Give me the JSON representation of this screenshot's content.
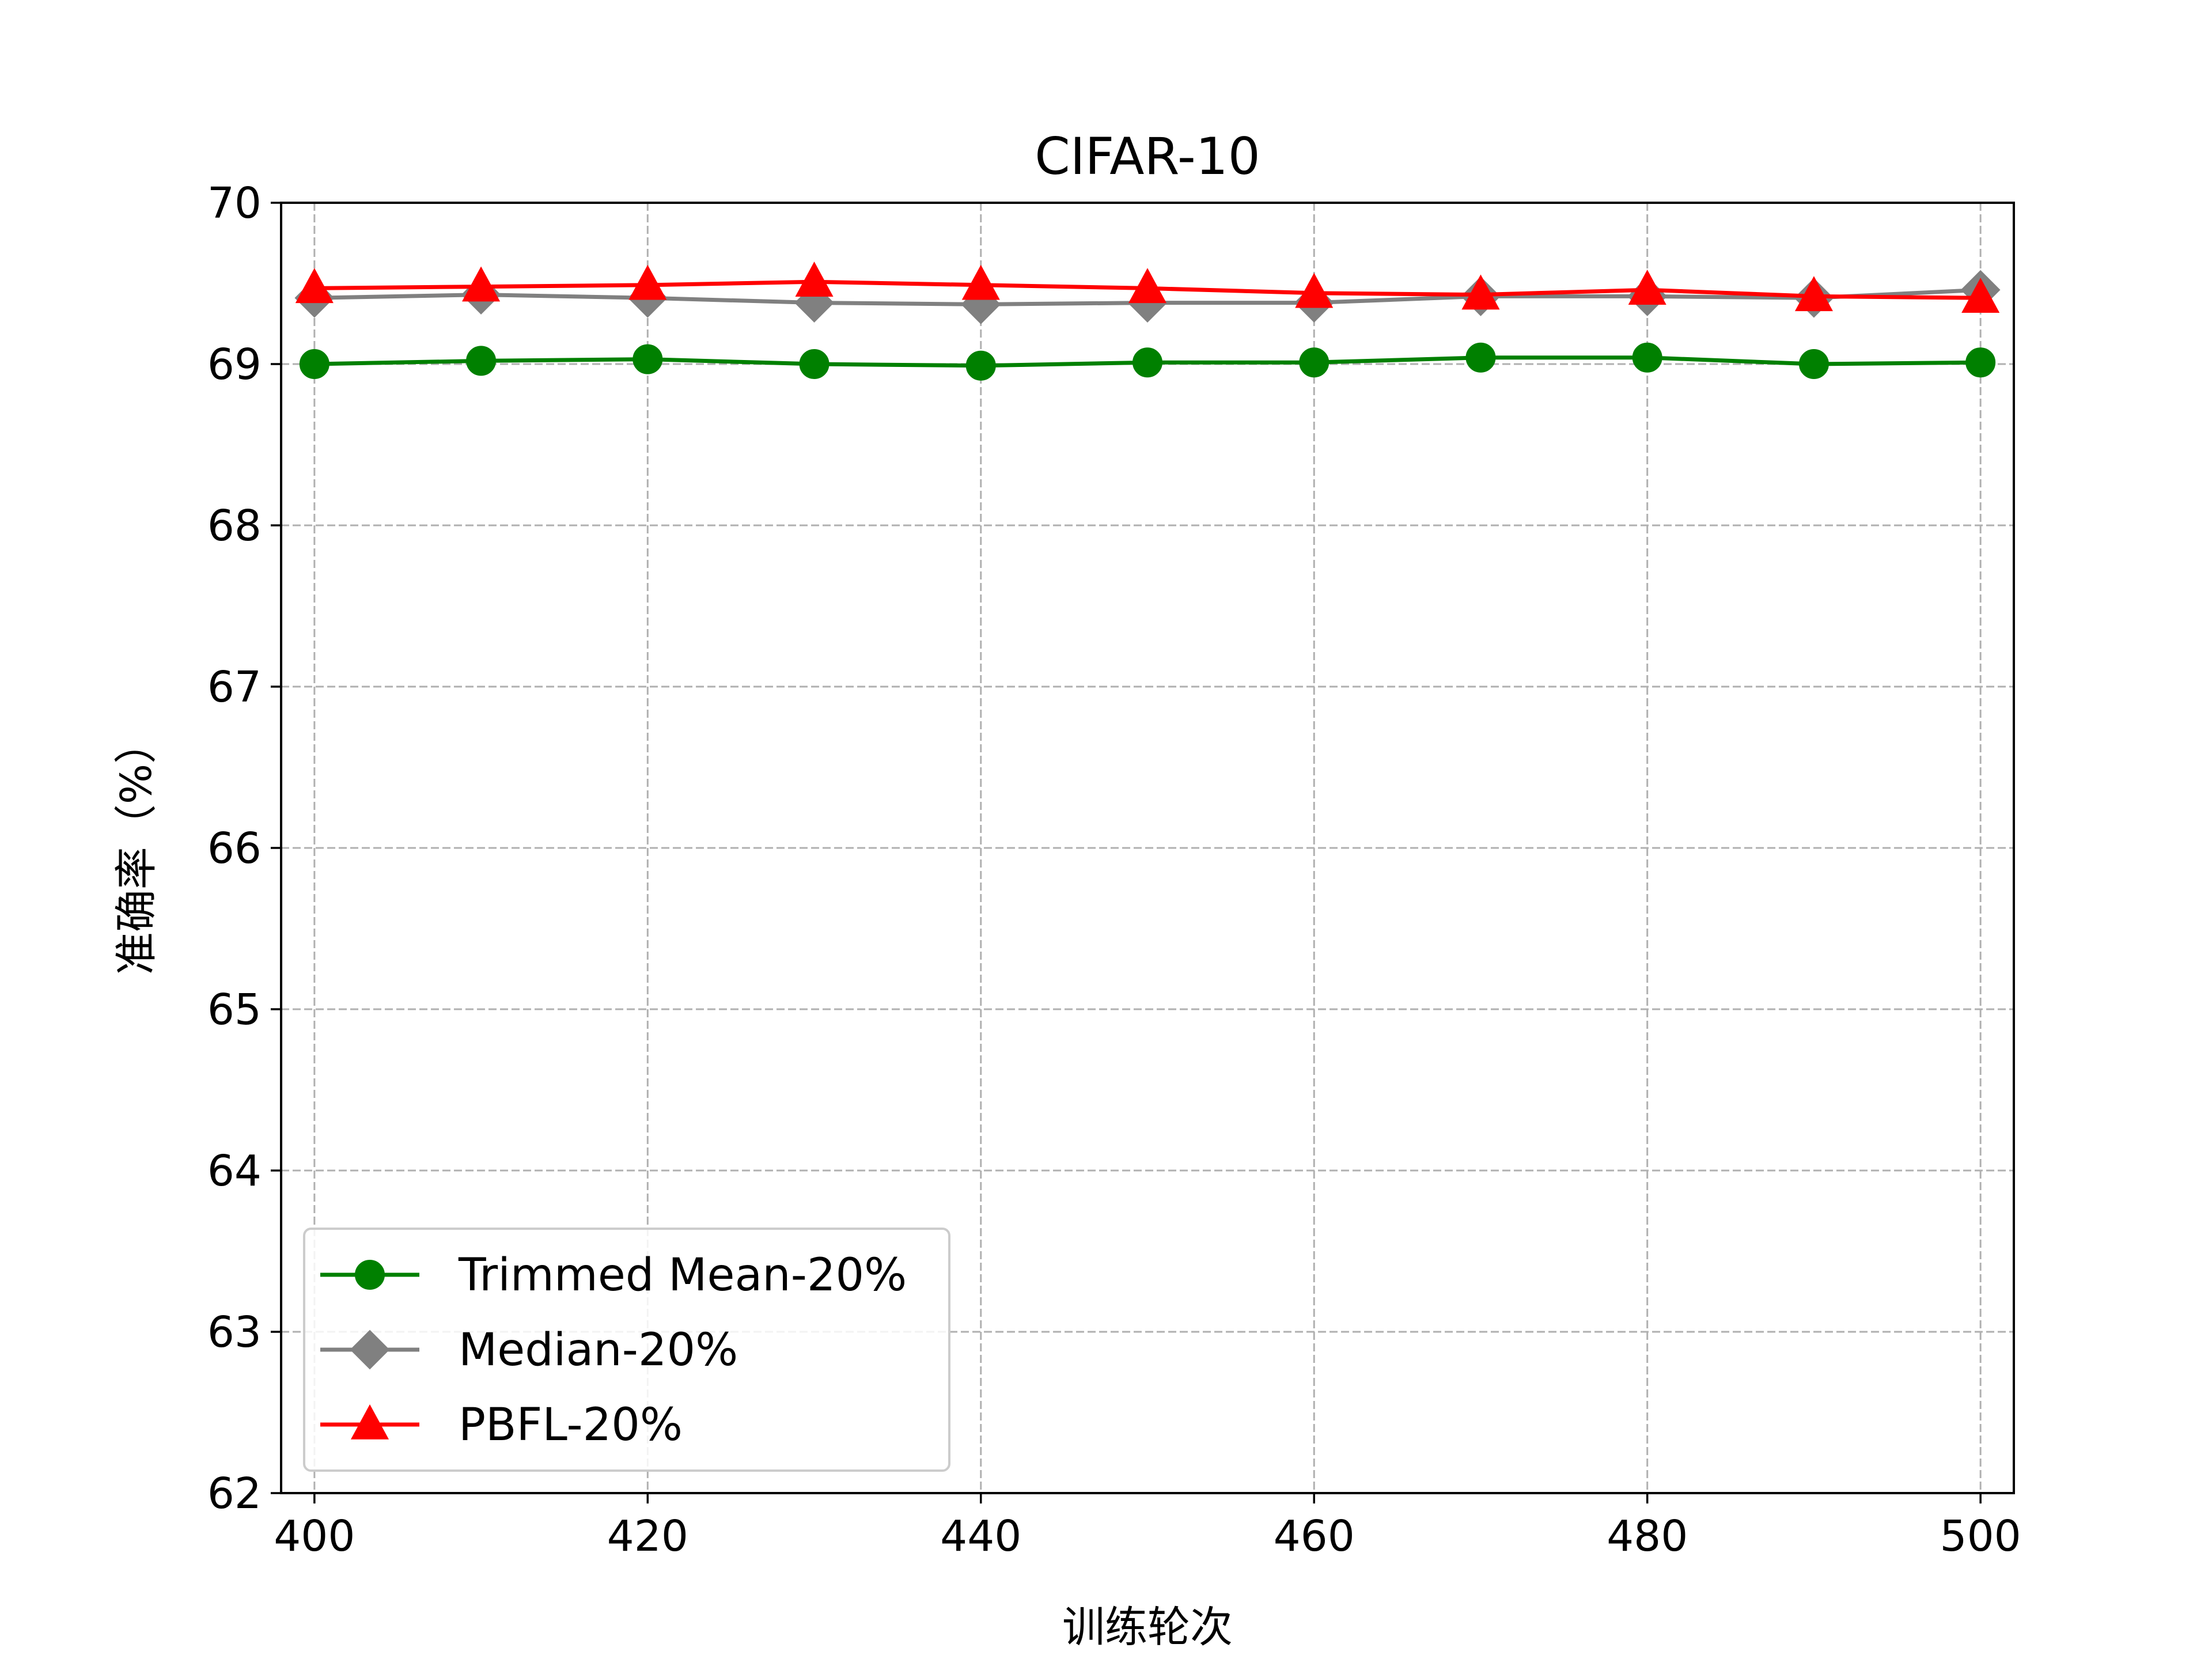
{
  "chart_data": {
    "type": "line",
    "title": "CIFAR-10",
    "xlabel": "训练轮次",
    "ylabel": "准确率（%）",
    "x": [
      400,
      410,
      420,
      430,
      440,
      450,
      460,
      470,
      480,
      490,
      500
    ],
    "xlim": [
      398,
      502
    ],
    "ylim": [
      62,
      70
    ],
    "xticks": [
      400,
      420,
      440,
      460,
      480,
      500
    ],
    "yticks": [
      62,
      63,
      64,
      65,
      66,
      67,
      68,
      69,
      70
    ],
    "grid": true,
    "legend_position": "bottom-left",
    "series": [
      {
        "name": "Trimmed Mean-20%",
        "color": "#008000",
        "marker": "circle",
        "values": [
          69.0,
          69.02,
          69.03,
          69.0,
          68.99,
          69.01,
          69.01,
          69.04,
          69.04,
          69.0,
          69.01
        ]
      },
      {
        "name": "Median-20%",
        "color": "#808080",
        "marker": "diamond",
        "values": [
          69.41,
          69.43,
          69.41,
          69.38,
          69.37,
          69.38,
          69.38,
          69.42,
          69.42,
          69.41,
          69.46
        ]
      },
      {
        "name": "PBFL-20%",
        "color": "#ff0000",
        "marker": "triangle",
        "values": [
          69.47,
          69.48,
          69.49,
          69.51,
          69.49,
          69.47,
          69.44,
          69.43,
          69.46,
          69.42,
          69.41
        ]
      }
    ]
  }
}
